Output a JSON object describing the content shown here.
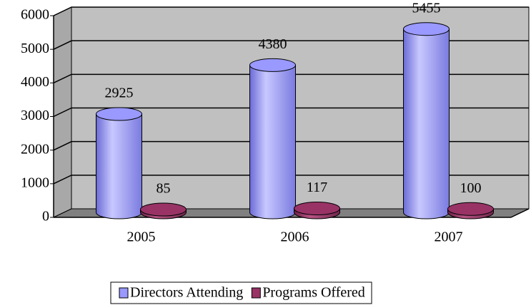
{
  "chart_data": {
    "type": "bar",
    "categories": [
      "2005",
      "2006",
      "2007"
    ],
    "series": [
      {
        "name": "Directors Attending",
        "color": "#9999ff",
        "values": [
          2925,
          4380,
          5455
        ]
      },
      {
        "name": "Programs Offered",
        "color": "#993366",
        "values": [
          85,
          117,
          100
        ]
      }
    ],
    "ylim": [
      0,
      6000
    ],
    "yticks": [
      0,
      1000,
      2000,
      3000,
      4000,
      5000,
      6000
    ],
    "grid": true,
    "legend": "bottom"
  }
}
